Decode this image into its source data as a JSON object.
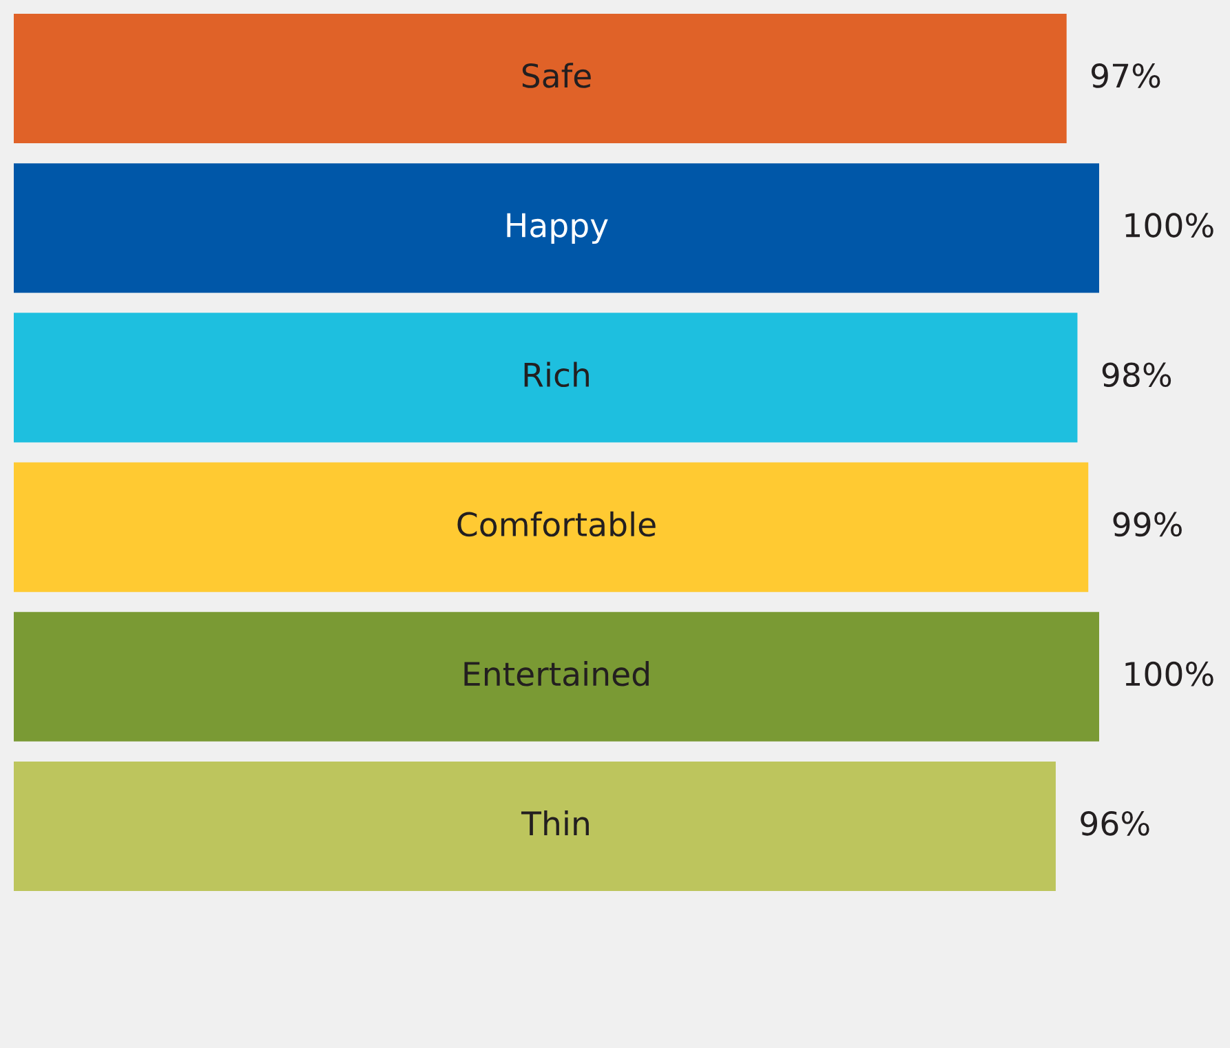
{
  "chart_data": {
    "type": "bar",
    "orientation": "horizontal",
    "categories": [
      "Safe",
      "Happy",
      "Rich",
      "Comfortable",
      "Entertained",
      "Thin"
    ],
    "values": [
      97,
      100,
      98,
      99,
      100,
      96
    ],
    "colors": [
      "#e06228",
      "#0057a8",
      "#1ebfdf",
      "#ffca32",
      "#7a9a34",
      "#bdc55d"
    ],
    "value_labels": [
      "97%",
      "100%",
      "98%",
      "99%",
      "100%",
      "96%"
    ],
    "tick_labels": false
  }
}
